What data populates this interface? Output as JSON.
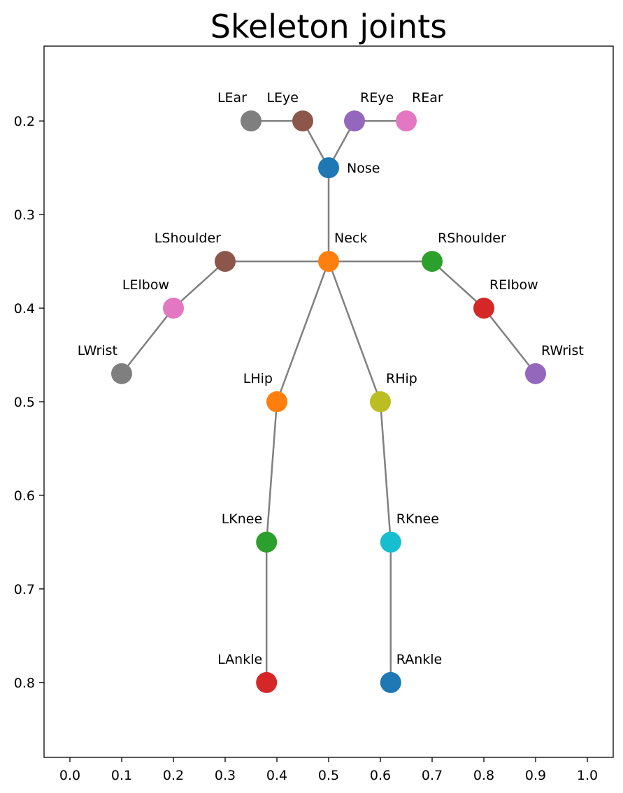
{
  "chart_data": {
    "type": "scatter",
    "title": "Skeleton joints",
    "xlabel": "",
    "ylabel": "",
    "xlim": [
      -0.05,
      1.05
    ],
    "ylim": [
      0.12,
      0.88
    ],
    "y_inverted": true,
    "grid": false,
    "xticks": [
      0.0,
      0.1,
      0.2,
      0.3,
      0.4,
      0.5,
      0.6,
      0.7,
      0.8,
      0.9,
      1.0
    ],
    "xtick_labels": [
      "0.0",
      "0.1",
      "0.2",
      "0.3",
      "0.4",
      "0.5",
      "0.6",
      "0.7",
      "0.8",
      "0.9",
      "1.0"
    ],
    "yticks": [
      0.2,
      0.3,
      0.4,
      0.5,
      0.6,
      0.7,
      0.8
    ],
    "ytick_labels": [
      "0.2",
      "0.3",
      "0.4",
      "0.5",
      "0.6",
      "0.7",
      "0.8"
    ],
    "joints": [
      {
        "name": "Nose",
        "x": 0.5,
        "y": 0.25,
        "color": "#1f77b4",
        "label_side": "right"
      },
      {
        "name": "Neck",
        "x": 0.5,
        "y": 0.35,
        "color": "#ff7f0e",
        "label_side": "above-right"
      },
      {
        "name": "RShoulder",
        "x": 0.7,
        "y": 0.35,
        "color": "#2ca02c",
        "label_side": "above-right"
      },
      {
        "name": "RElbow",
        "x": 0.8,
        "y": 0.4,
        "color": "#d62728",
        "label_side": "above-right"
      },
      {
        "name": "RWrist",
        "x": 0.9,
        "y": 0.47,
        "color": "#9467bd",
        "label_side": "above-right"
      },
      {
        "name": "LShoulder",
        "x": 0.3,
        "y": 0.35,
        "color": "#8c564b",
        "label_side": "above-left"
      },
      {
        "name": "LElbow",
        "x": 0.2,
        "y": 0.4,
        "color": "#e377c2",
        "label_side": "above-left"
      },
      {
        "name": "LWrist",
        "x": 0.1,
        "y": 0.47,
        "color": "#7f7f7f",
        "label_side": "above-left"
      },
      {
        "name": "RHip",
        "x": 0.6,
        "y": 0.5,
        "color": "#bcbd22",
        "label_side": "above-right"
      },
      {
        "name": "RKnee",
        "x": 0.62,
        "y": 0.65,
        "color": "#17becf",
        "label_side": "above-right"
      },
      {
        "name": "RAnkle",
        "x": 0.62,
        "y": 0.8,
        "color": "#1f77b4",
        "label_side": "above-right"
      },
      {
        "name": "LHip",
        "x": 0.4,
        "y": 0.5,
        "color": "#ff7f0e",
        "label_side": "above-left"
      },
      {
        "name": "LKnee",
        "x": 0.38,
        "y": 0.65,
        "color": "#2ca02c",
        "label_side": "above-left"
      },
      {
        "name": "LAnkle",
        "x": 0.38,
        "y": 0.8,
        "color": "#d62728",
        "label_side": "above-left"
      },
      {
        "name": "REye",
        "x": 0.55,
        "y": 0.2,
        "color": "#9467bd",
        "label_side": "above-right"
      },
      {
        "name": "LEye",
        "x": 0.45,
        "y": 0.2,
        "color": "#8c564b",
        "label_side": "above-left"
      },
      {
        "name": "REar",
        "x": 0.65,
        "y": 0.2,
        "color": "#e377c2",
        "label_side": "above-right"
      },
      {
        "name": "LEar",
        "x": 0.35,
        "y": 0.2,
        "color": "#7f7f7f",
        "label_side": "above-left"
      }
    ],
    "bones": [
      [
        "Nose",
        "Neck"
      ],
      [
        "Neck",
        "RShoulder"
      ],
      [
        "RShoulder",
        "RElbow"
      ],
      [
        "RElbow",
        "RWrist"
      ],
      [
        "Neck",
        "LShoulder"
      ],
      [
        "LShoulder",
        "LElbow"
      ],
      [
        "LElbow",
        "LWrist"
      ],
      [
        "Neck",
        "RHip"
      ],
      [
        "RHip",
        "RKnee"
      ],
      [
        "RKnee",
        "RAnkle"
      ],
      [
        "Neck",
        "LHip"
      ],
      [
        "LHip",
        "LKnee"
      ],
      [
        "LKnee",
        "LAnkle"
      ],
      [
        "Nose",
        "REye"
      ],
      [
        "REye",
        "REar"
      ],
      [
        "Nose",
        "LEye"
      ],
      [
        "LEye",
        "LEar"
      ]
    ]
  }
}
